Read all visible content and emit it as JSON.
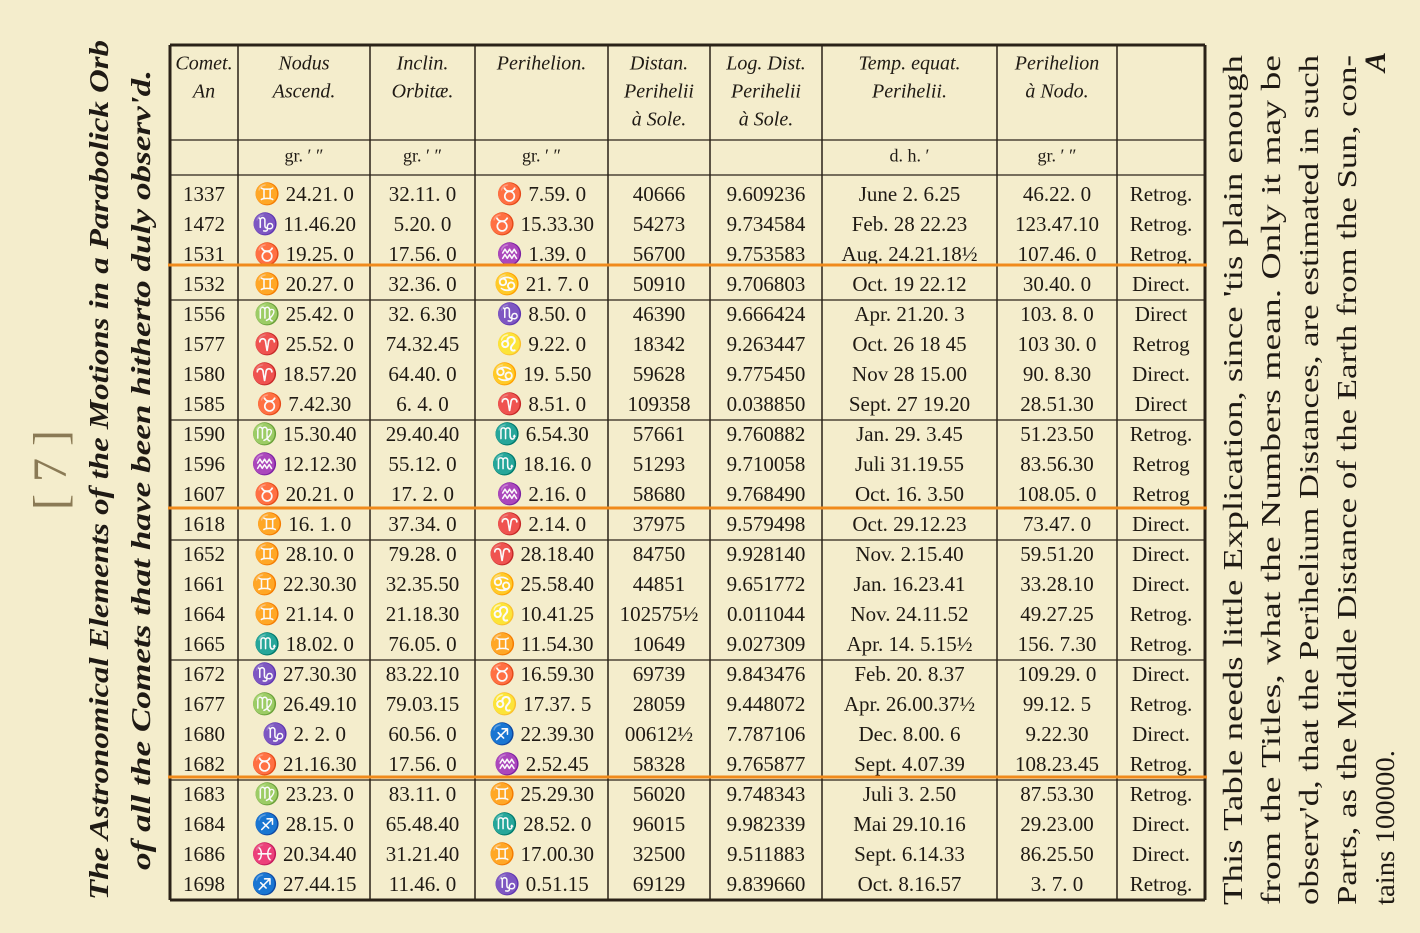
{
  "page_number": "[ 7 ]",
  "corner_mark": "A",
  "title_lines": [
    "The Astronomical Elements of the Motions in a Parabolick Orb",
    "of all the Comets that have been hitherto duly observ'd."
  ],
  "note_lines": [
    "This Table needs little Explication, since 'tis plain enough",
    "from the Titles, what the Numbers mean. Only it may be",
    "observ'd, that the Perihelium Distances, are estimated in such",
    "Parts, as the Middle Distance of the Earth from the Sun, con-",
    "tains 100000."
  ],
  "table": {
    "header": [
      [
        "Comet.",
        "An"
      ],
      [
        "Nodus",
        "Ascend."
      ],
      [
        "Inclin.",
        "Orbitæ."
      ],
      [
        "Perihelion."
      ],
      [
        "Distan.",
        "Perihelii",
        "à Sole."
      ],
      [
        "Log. Dist.",
        "Perihelii",
        "à Sole."
      ],
      [
        "Temp. equat.",
        "Perihelii."
      ],
      [
        "Perihelion",
        "à Nodo."
      ],
      []
    ],
    "units": [
      "gr. ′ ″",
      "gr. ′ ″",
      "gr. ′ ″",
      "d. h. ′",
      "gr. ′ ″"
    ],
    "rows": [
      [
        "1337",
        "♊ 24.21. 0",
        "32.11. 0",
        "♉ 7.59. 0",
        "40666",
        "9.609236",
        "June 2. 6.25",
        "46.22. 0",
        "Retrog."
      ],
      [
        "1472",
        "♑ 11.46.20",
        "5.20. 0",
        "♉ 15.33.30",
        "54273",
        "9.734584",
        "Feb. 28 22.23",
        "123.47.10",
        "Retrog."
      ],
      [
        "1531",
        "♉ 19.25. 0",
        "17.56. 0",
        "♒ 1.39. 0",
        "56700",
        "9.753583",
        "Aug. 24.21.18½",
        "107.46. 0",
        "Retrog."
      ],
      [
        "1532",
        "♊ 20.27. 0",
        "32.36. 0",
        "♋ 21. 7. 0",
        "50910",
        "9.706803",
        "Oct. 19 22.12",
        "30.40. 0",
        "Direct."
      ],
      [
        "1556",
        "♍ 25.42. 0",
        "32. 6.30",
        "♑ 8.50. 0",
        "46390",
        "9.666424",
        "Apr. 21.20. 3",
        "103. 8. 0",
        "Direct"
      ],
      [
        "1577",
        "♈ 25.52. 0",
        "74.32.45",
        "♌ 9.22. 0",
        "18342",
        "9.263447",
        "Oct. 26 18 45",
        "103 30. 0",
        "Retrog"
      ],
      [
        "1580",
        "♈ 18.57.20",
        "64.40. 0",
        "♋ 19. 5.50",
        "59628",
        "9.775450",
        "Nov 28 15.00",
        "90. 8.30",
        "Direct."
      ],
      [
        "1585",
        "♉ 7.42.30",
        "6. 4. 0",
        "♈ 8.51. 0",
        "109358",
        "0.038850",
        "Sept. 27 19.20",
        "28.51.30",
        "Direct"
      ],
      [
        "1590",
        "♍ 15.30.40",
        "29.40.40",
        "♏ 6.54.30",
        "57661",
        "9.760882",
        "Jan. 29. 3.45",
        "51.23.50",
        "Retrog."
      ],
      [
        "1596",
        "♒ 12.12.30",
        "55.12. 0",
        "♏ 18.16. 0",
        "51293",
        "9.710058",
        "Juli 31.19.55",
        "83.56.30",
        "Retrog"
      ],
      [
        "1607",
        "♉ 20.21. 0",
        "17. 2. 0",
        "♒ 2.16. 0",
        "58680",
        "9.768490",
        "Oct. 16. 3.50",
        "108.05. 0",
        "Retrog"
      ],
      [
        "1618",
        "♊ 16. 1. 0",
        "37.34. 0",
        "♈ 2.14. 0",
        "37975",
        "9.579498",
        "Oct. 29.12.23",
        "73.47. 0",
        "Direct."
      ],
      [
        "1652",
        "♊ 28.10. 0",
        "79.28. 0",
        "♈ 28.18.40",
        "84750",
        "9.928140",
        "Nov. 2.15.40",
        "59.51.20",
        "Direct."
      ],
      [
        "1661",
        "♊ 22.30.30",
        "32.35.50",
        "♋ 25.58.40",
        "44851",
        "9.651772",
        "Jan. 16.23.41",
        "33.28.10",
        "Direct."
      ],
      [
        "1664",
        "♊ 21.14. 0",
        "21.18.30",
        "♌ 10.41.25",
        "102575½",
        "0.011044",
        "Nov. 24.11.52",
        "49.27.25",
        "Retrog."
      ],
      [
        "1665",
        "♏ 18.02. 0",
        "76.05. 0",
        "♊ 11.54.30",
        "10649",
        "9.027309",
        "Apr. 14. 5.15½",
        "156. 7.30",
        "Retrog."
      ],
      [
        "1672",
        "♑ 27.30.30",
        "83.22.10",
        "♉ 16.59.30",
        "69739",
        "9.843476",
        "Feb. 20. 8.37",
        "109.29. 0",
        "Direct."
      ],
      [
        "1677",
        "♍ 26.49.10",
        "79.03.15",
        "♌ 17.37. 5",
        "28059",
        "9.448072",
        "Apr. 26.00.37½",
        "99.12. 5",
        "Retrog."
      ],
      [
        "1680",
        "♑ 2. 2. 0",
        "60.56. 0",
        "♐ 22.39.30",
        "00612½",
        "7.787106",
        "Dec. 8.00. 6",
        "9.22.30",
        "Direct."
      ],
      [
        "1682",
        "♉ 21.16.30",
        "17.56. 0",
        "♒ 2.52.45",
        "58328",
        "9.765877",
        "Sept. 4.07.39",
        "108.23.45",
        "Retrog."
      ],
      [
        "1683",
        "♍ 23.23. 0",
        "83.11. 0",
        "♊ 25.29.30",
        "56020",
        "9.748343",
        "Juli 3. 2.50",
        "87.53.30",
        "Retrog."
      ],
      [
        "1684",
        "♐ 28.15. 0",
        "65.48.40",
        "♏ 28.52. 0",
        "96015",
        "9.982339",
        "Mai 29.10.16",
        "29.23.00",
        "Direct."
      ],
      [
        "1686",
        "♓ 20.34.40",
        "31.21.40",
        "♊ 17.00.30",
        "32500",
        "9.511883",
        "Sept. 6.14.33",
        "86.25.50",
        "Direct."
      ],
      [
        "1698",
        "♐ 27.44.15",
        "11.46. 0",
        "♑ 0.51.15",
        "69129",
        "9.839660",
        "Oct. 8.16.57",
        "3. 7. 0",
        "Retrog."
      ]
    ]
  }
}
